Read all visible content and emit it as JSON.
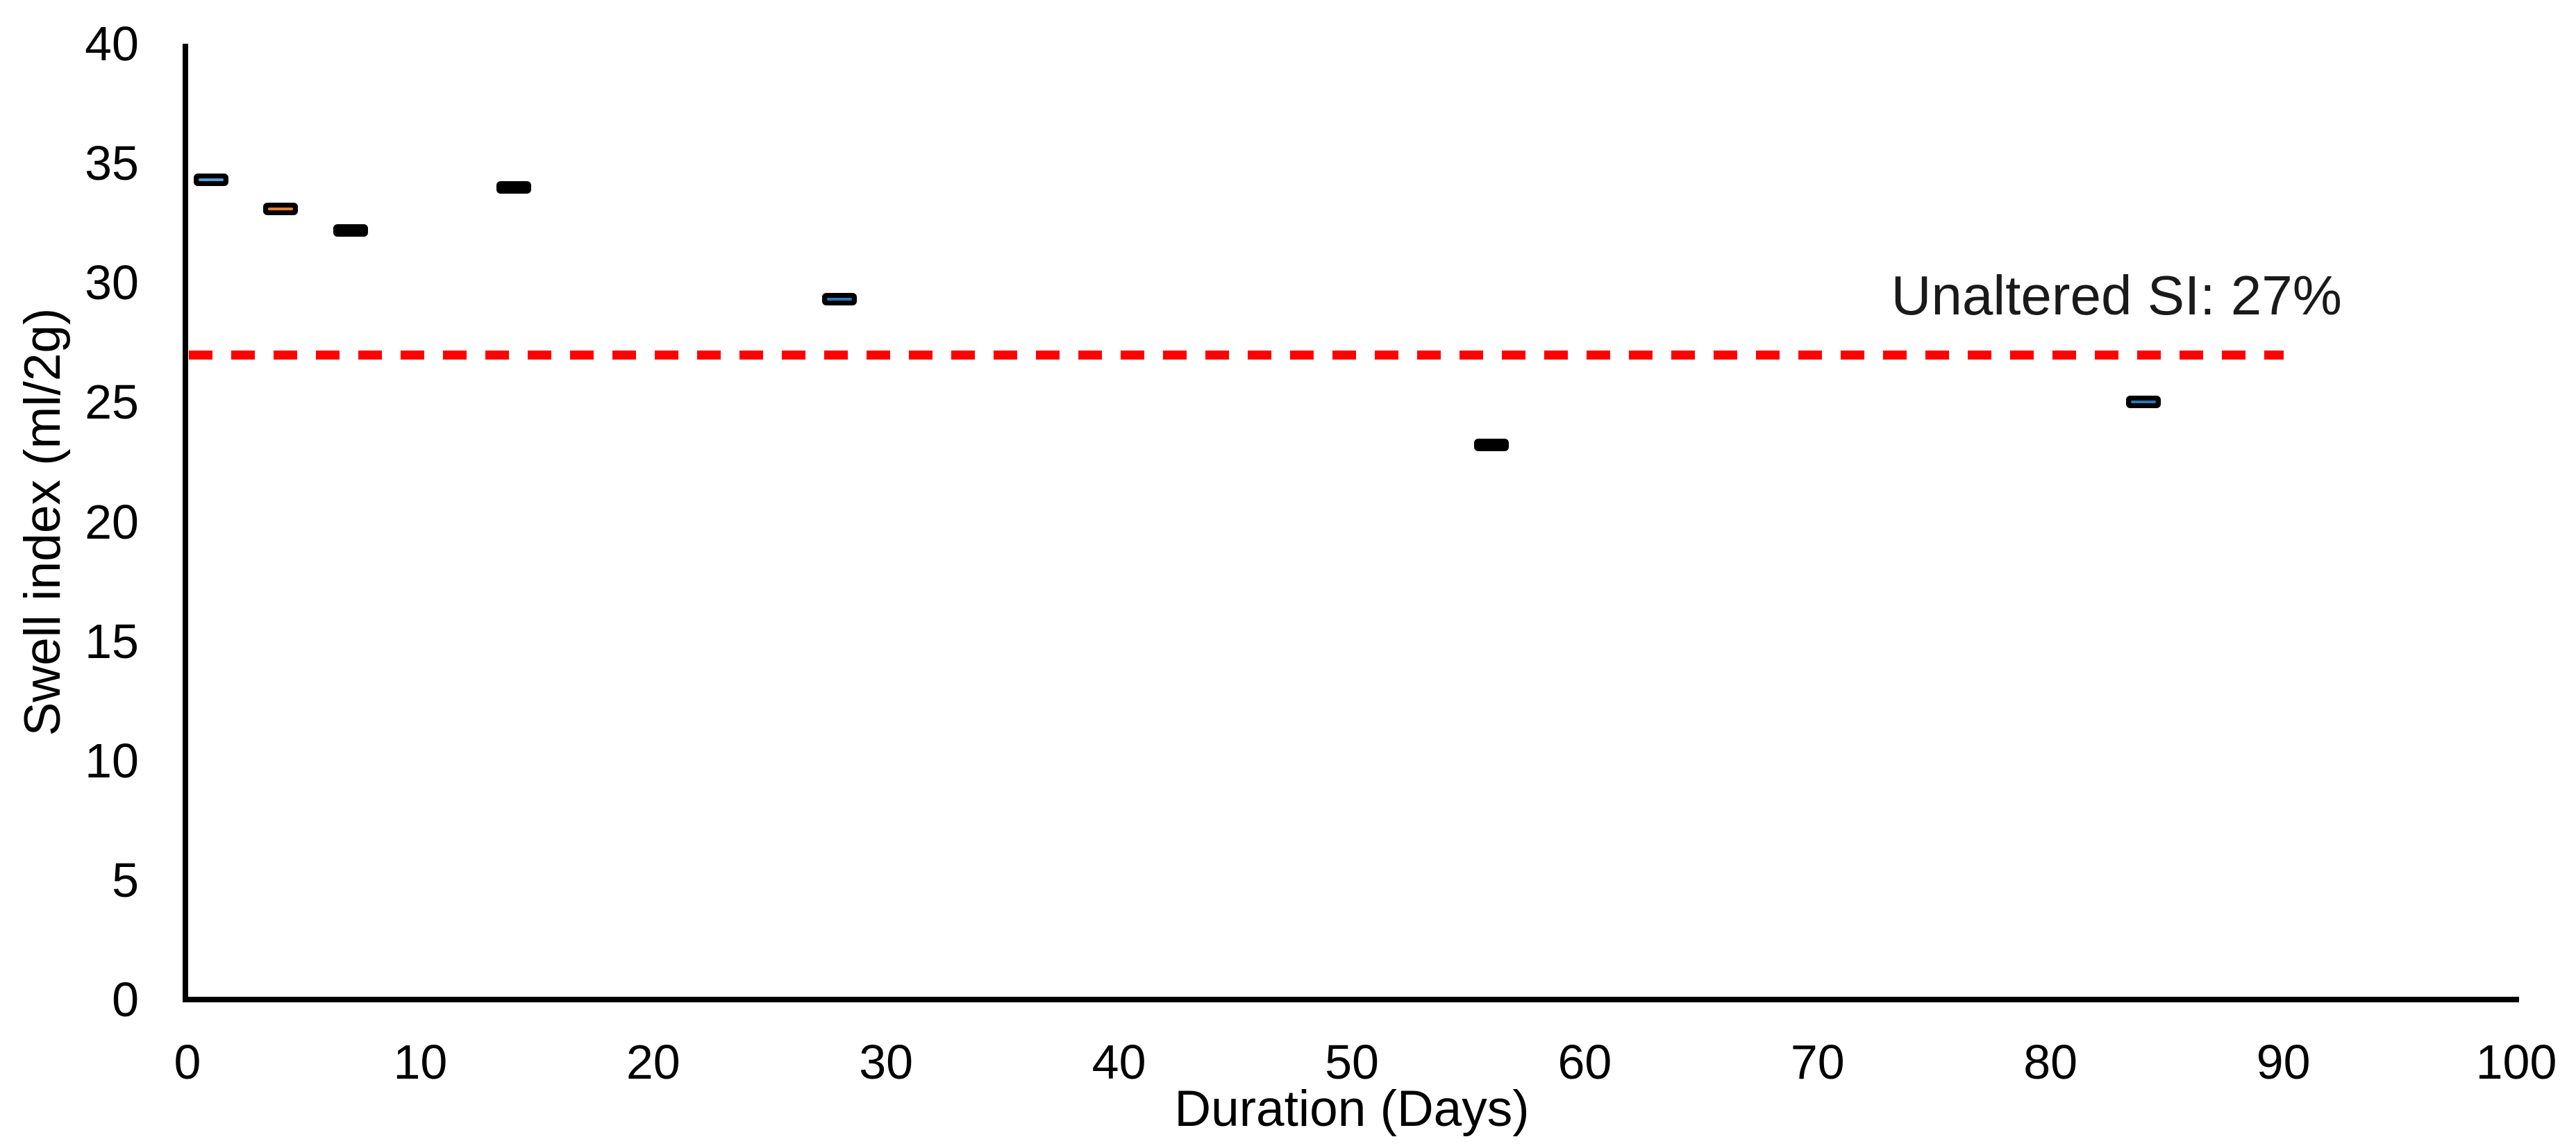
{
  "chart_data": {
    "type": "scatter",
    "title": "",
    "xlabel": "Duration (Days)",
    "ylabel": "Swell index (ml/2g)",
    "xlim": [
      0,
      100
    ],
    "ylim": [
      0,
      40
    ],
    "xticks": [
      0,
      10,
      20,
      30,
      40,
      50,
      60,
      70,
      80,
      90,
      100
    ],
    "yticks": [
      0,
      5,
      10,
      15,
      20,
      25,
      30,
      35,
      40
    ],
    "grid": false,
    "legend": false,
    "background_color": "#FFFFFF",
    "axis_color": "#000000",
    "marker_style": "dash",
    "marker_color": "#000000",
    "series": [
      {
        "name": "Swell index",
        "points": [
          {
            "x": 1,
            "y": 34.3,
            "accent": "#5B9BD5"
          },
          {
            "x": 4,
            "y": 33.1,
            "accent": "#ED7D31"
          },
          {
            "x": 7,
            "y": 32.2,
            "accent": null
          },
          {
            "x": 14,
            "y": 34.0,
            "accent": null
          },
          {
            "x": 28,
            "y": 29.3,
            "accent": "#2E75B6"
          },
          {
            "x": 56,
            "y": 23.2,
            "accent": null
          },
          {
            "x": 84,
            "y": 25.0,
            "accent": "#2E75B6"
          }
        ]
      }
    ],
    "reference_line": {
      "value": 27,
      "label": "Unaltered SI: 27%",
      "color": "#FF0000",
      "style": "dashed",
      "x_start": 0,
      "x_end": 90
    }
  }
}
